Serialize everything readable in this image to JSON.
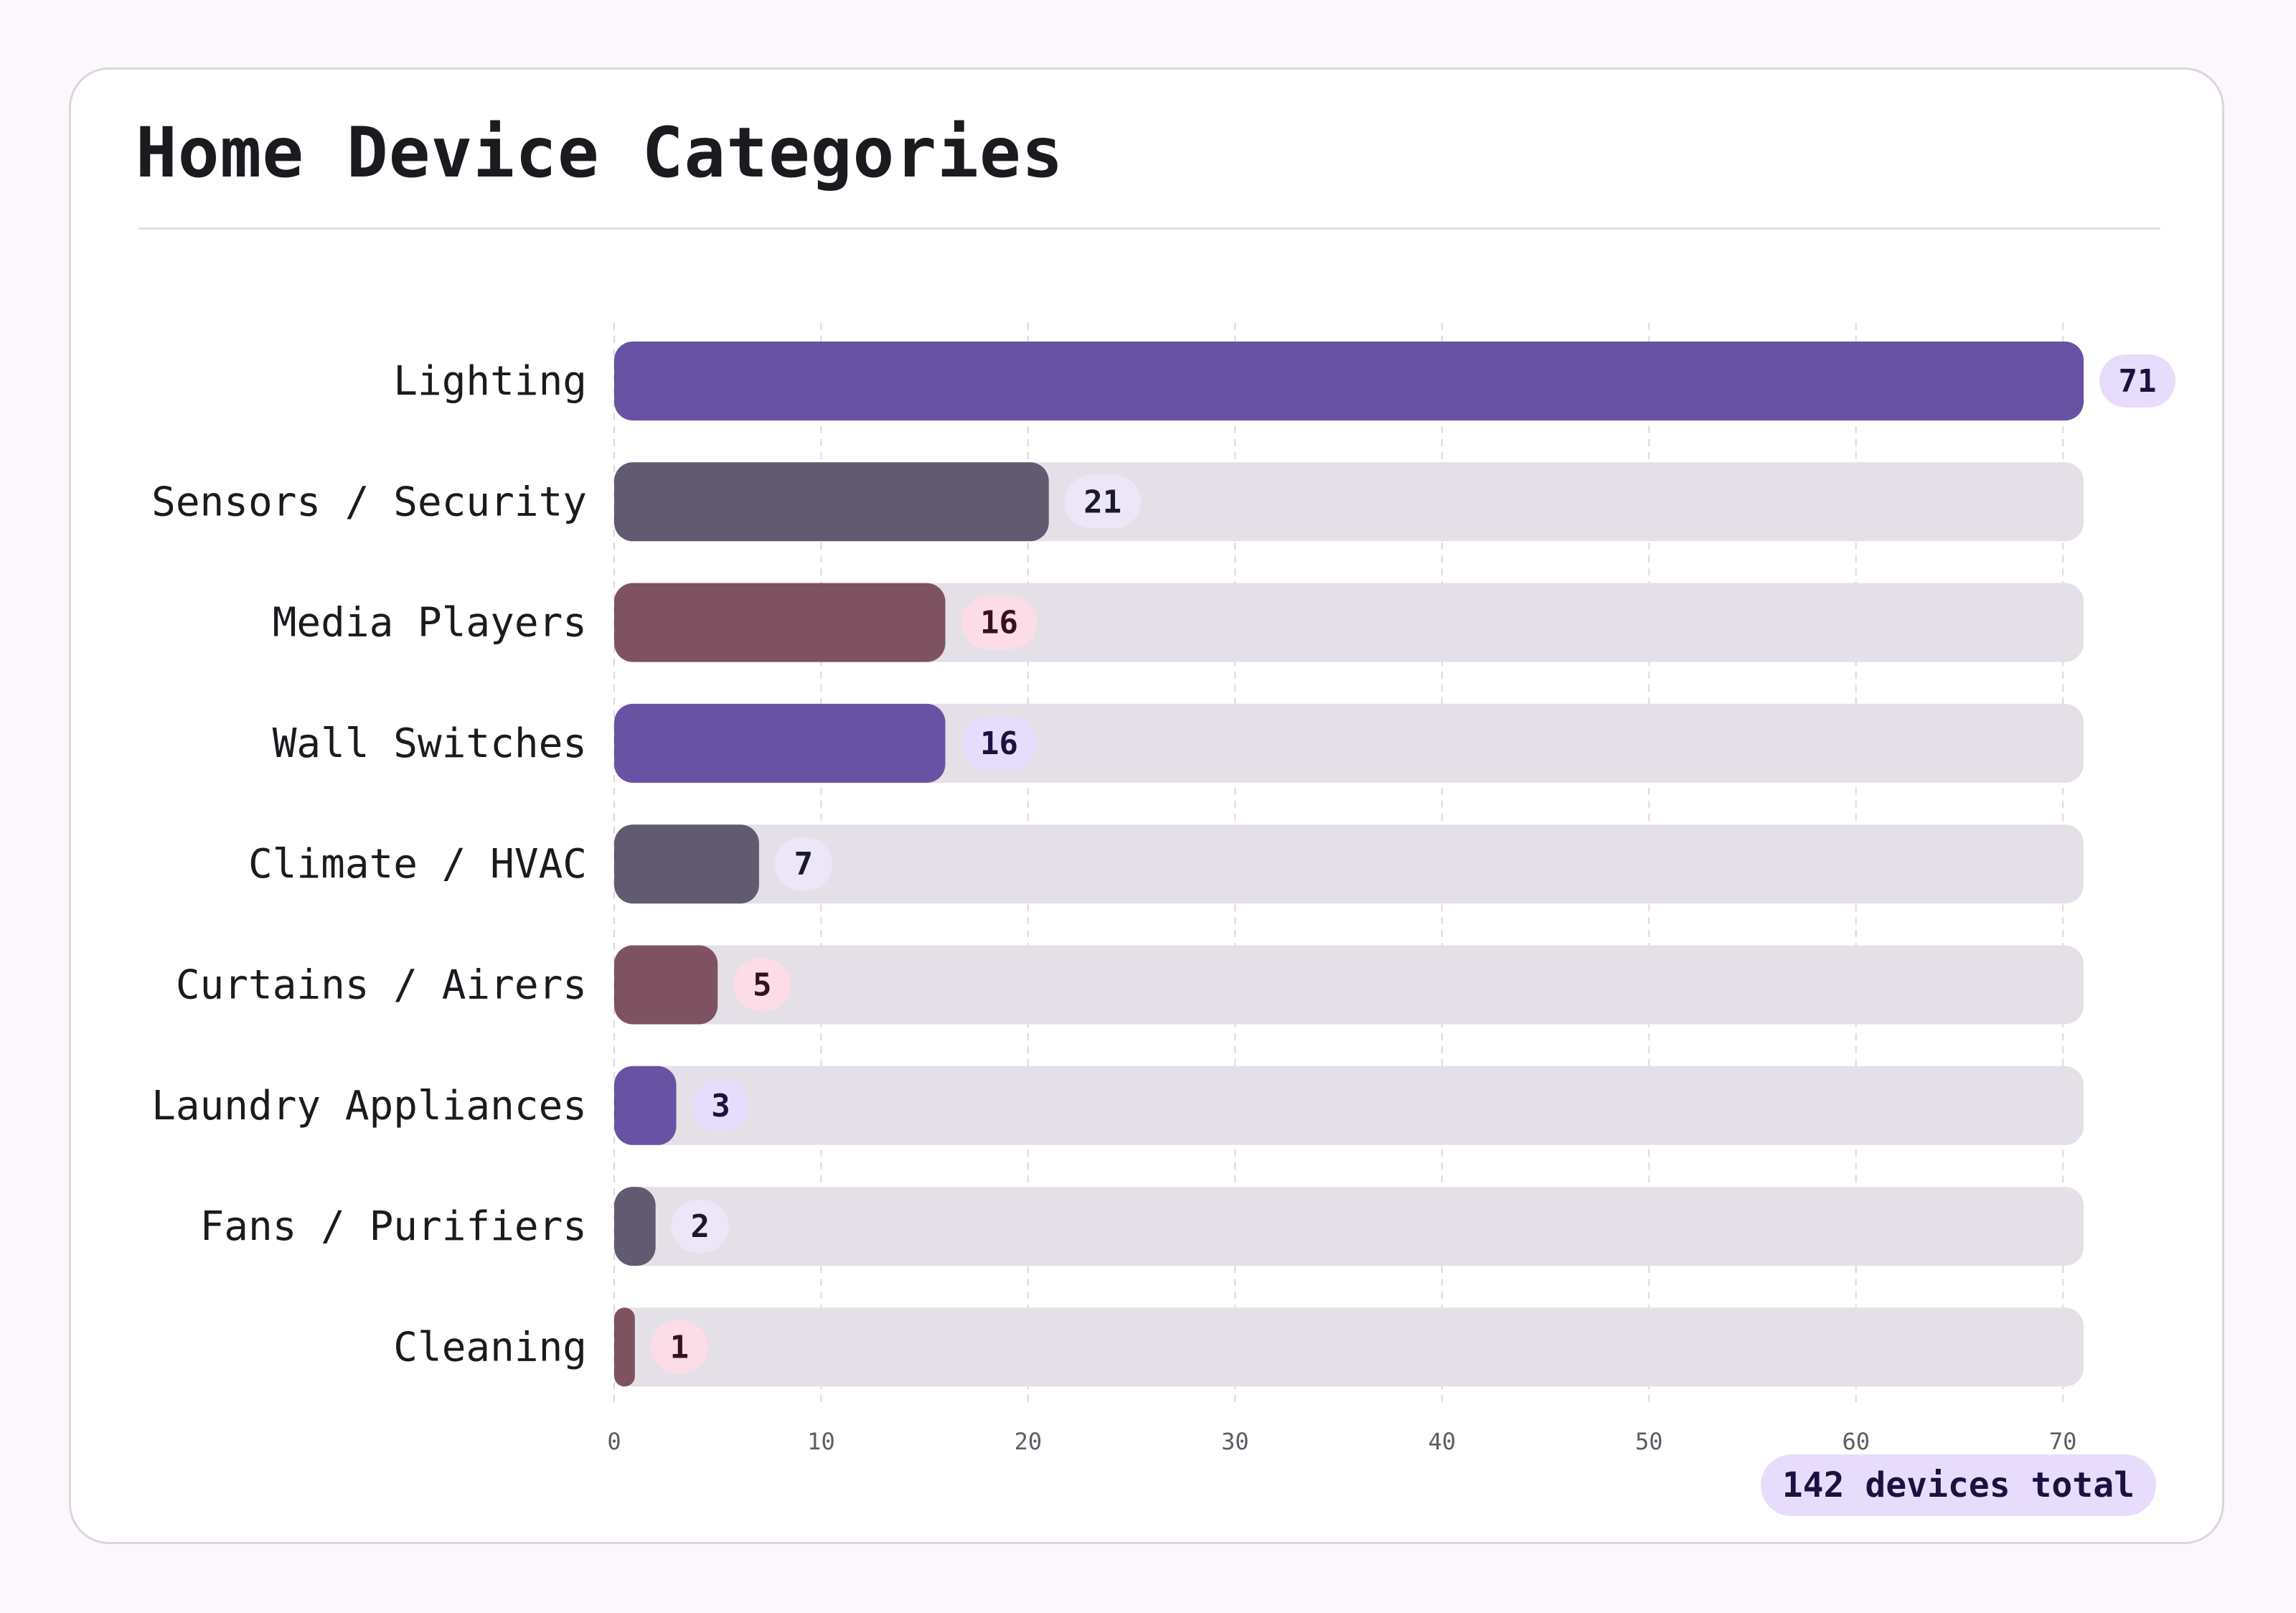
{
  "title": "Home Device Categories",
  "total_badge": "142 devices total",
  "colors": {
    "purple": "#6852a4",
    "slate": "#625a70",
    "mauve": "#7e5260",
    "track": "#e5e0e7",
    "badge_purple_bg": "#e8dcfc",
    "badge_slate_bg": "#ece6f8",
    "badge_mauve_bg": "#fcdce6"
  },
  "chart_data": {
    "type": "bar",
    "orientation": "horizontal",
    "title": "Home Device Categories",
    "categories": [
      "Lighting",
      "Sensors / Security",
      "Media Players",
      "Wall Switches",
      "Climate / HVAC",
      "Curtains / Airers",
      "Laundry Appliances",
      "Fans / Purifiers",
      "Cleaning"
    ],
    "values": [
      71,
      21,
      16,
      16,
      7,
      5,
      3,
      2,
      1
    ],
    "bar_colors": [
      "purple",
      "slate",
      "mauve",
      "purple",
      "slate",
      "mauve",
      "purple",
      "slate",
      "mauve"
    ],
    "xlim": [
      0,
      71
    ],
    "xticks": [
      0,
      10,
      20,
      30,
      40,
      50,
      60,
      70
    ],
    "grid": true,
    "xlabel": "",
    "ylabel": ""
  }
}
